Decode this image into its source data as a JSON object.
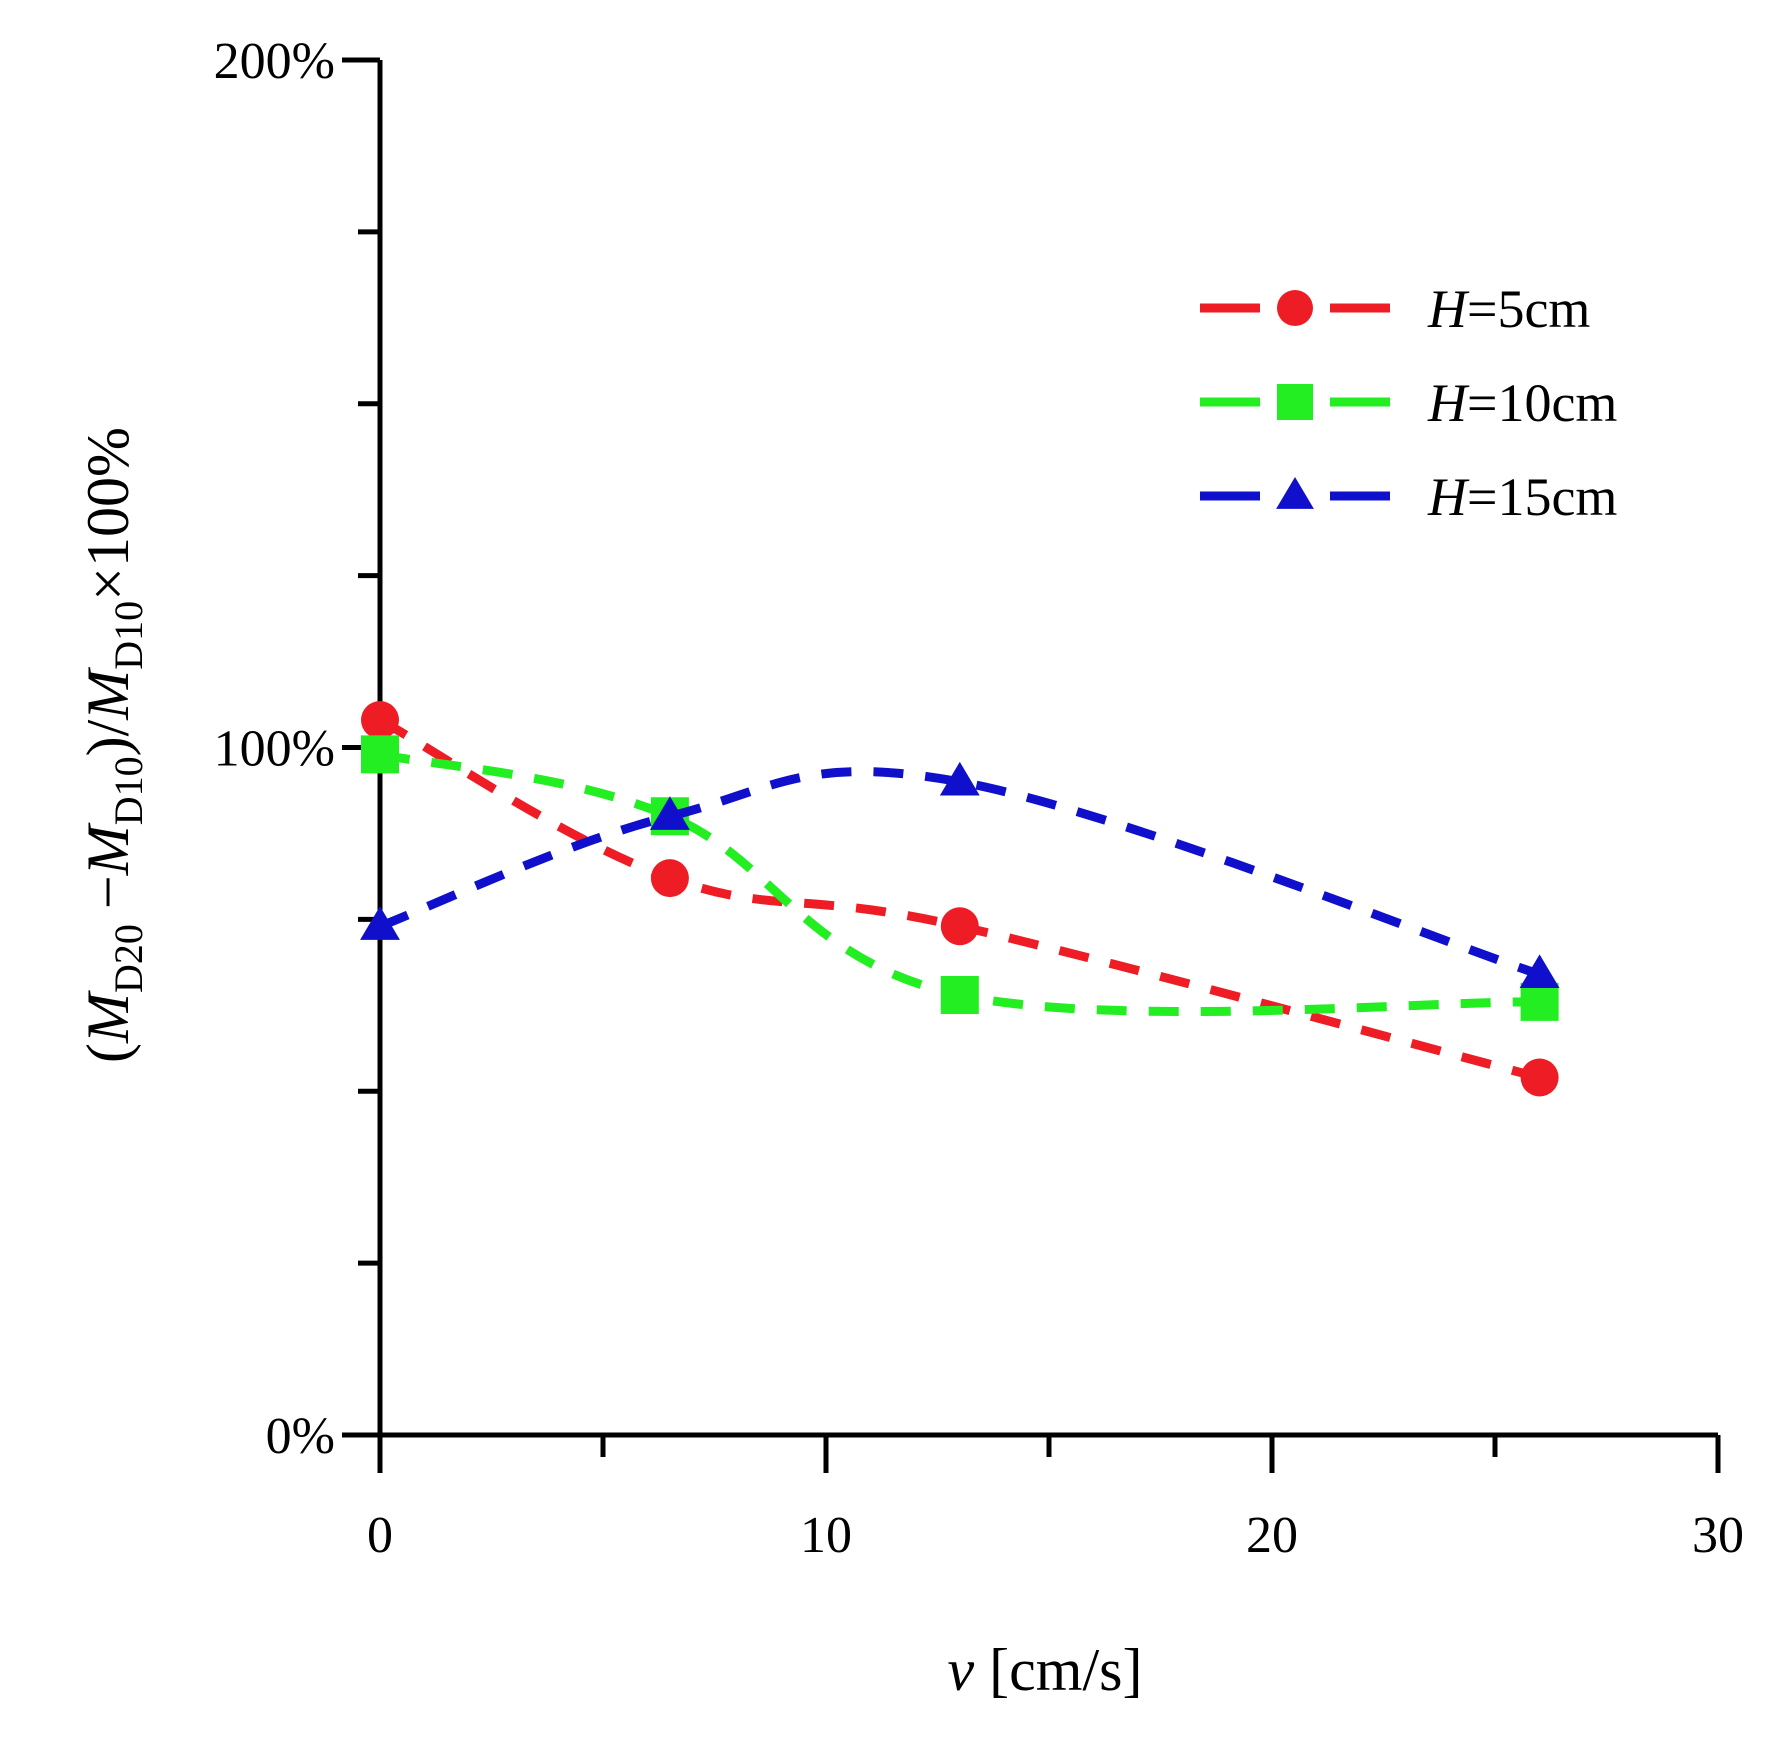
{
  "chart_data": {
    "type": "line",
    "title": "",
    "xlabel": {
      "italic": "v",
      "rest": " [cm/s]"
    },
    "ylabel": {
      "full": "(MD20 −MD10)/MD10×100%"
    },
    "xlim": [
      0,
      30
    ],
    "ylim": [
      0,
      200
    ],
    "x_ticks": [
      "0",
      "10",
      "20",
      "30"
    ],
    "y_ticks": [
      "0%",
      "100%",
      "200%"
    ],
    "legend_position": "top-right",
    "grid": false,
    "series": [
      {
        "name": "H=5cm",
        "name_italic": "H",
        "name_rest": "=5cm",
        "color": "#ee1c25",
        "marker": "circle",
        "x": [
          0,
          6.5,
          13,
          26
        ],
        "y": [
          104,
          81,
          74,
          52
        ]
      },
      {
        "name": "H=10cm",
        "name_italic": "H",
        "name_rest": "=10cm",
        "color": "#22ee22",
        "marker": "square",
        "x": [
          0,
          6.5,
          13,
          26
        ],
        "y": [
          99,
          90,
          64,
          63
        ]
      },
      {
        "name": "H=15cm",
        "name_italic": "H",
        "name_rest": "=15cm",
        "color": "#1010cc",
        "marker": "triangle",
        "x": [
          0,
          6.5,
          13,
          26
        ],
        "y": [
          74,
          90,
          95,
          67
        ]
      }
    ]
  }
}
